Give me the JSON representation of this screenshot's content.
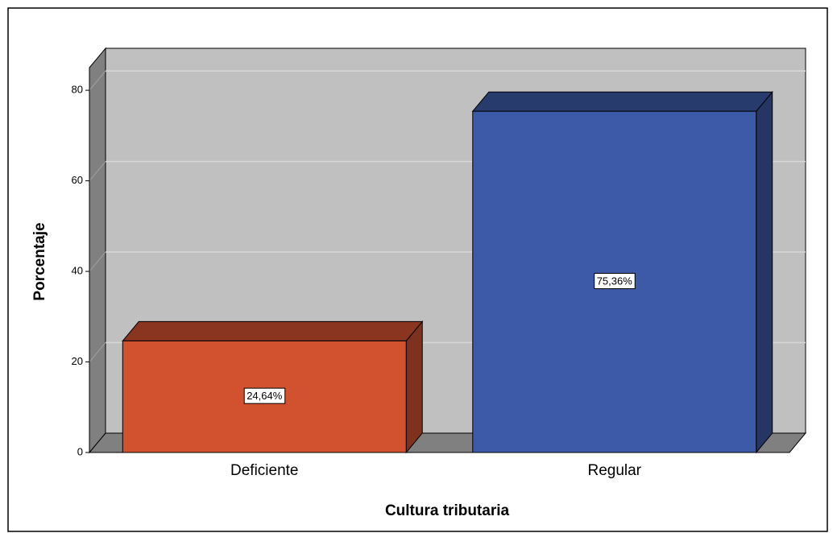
{
  "chart_data": {
    "type": "bar3d",
    "categories": [
      "Deficiente",
      "Regular"
    ],
    "values": [
      24.64,
      75.36
    ],
    "value_labels": [
      "24,64%",
      "75,36%"
    ],
    "colors": [
      "#d2522f",
      "#3d5aa8"
    ],
    "x_label": "Cultura tributaria",
    "y_label": "Porcentaje",
    "ylim": [
      0,
      85
    ],
    "yticks": [
      0,
      20,
      40,
      60,
      80
    ],
    "grid": true
  }
}
